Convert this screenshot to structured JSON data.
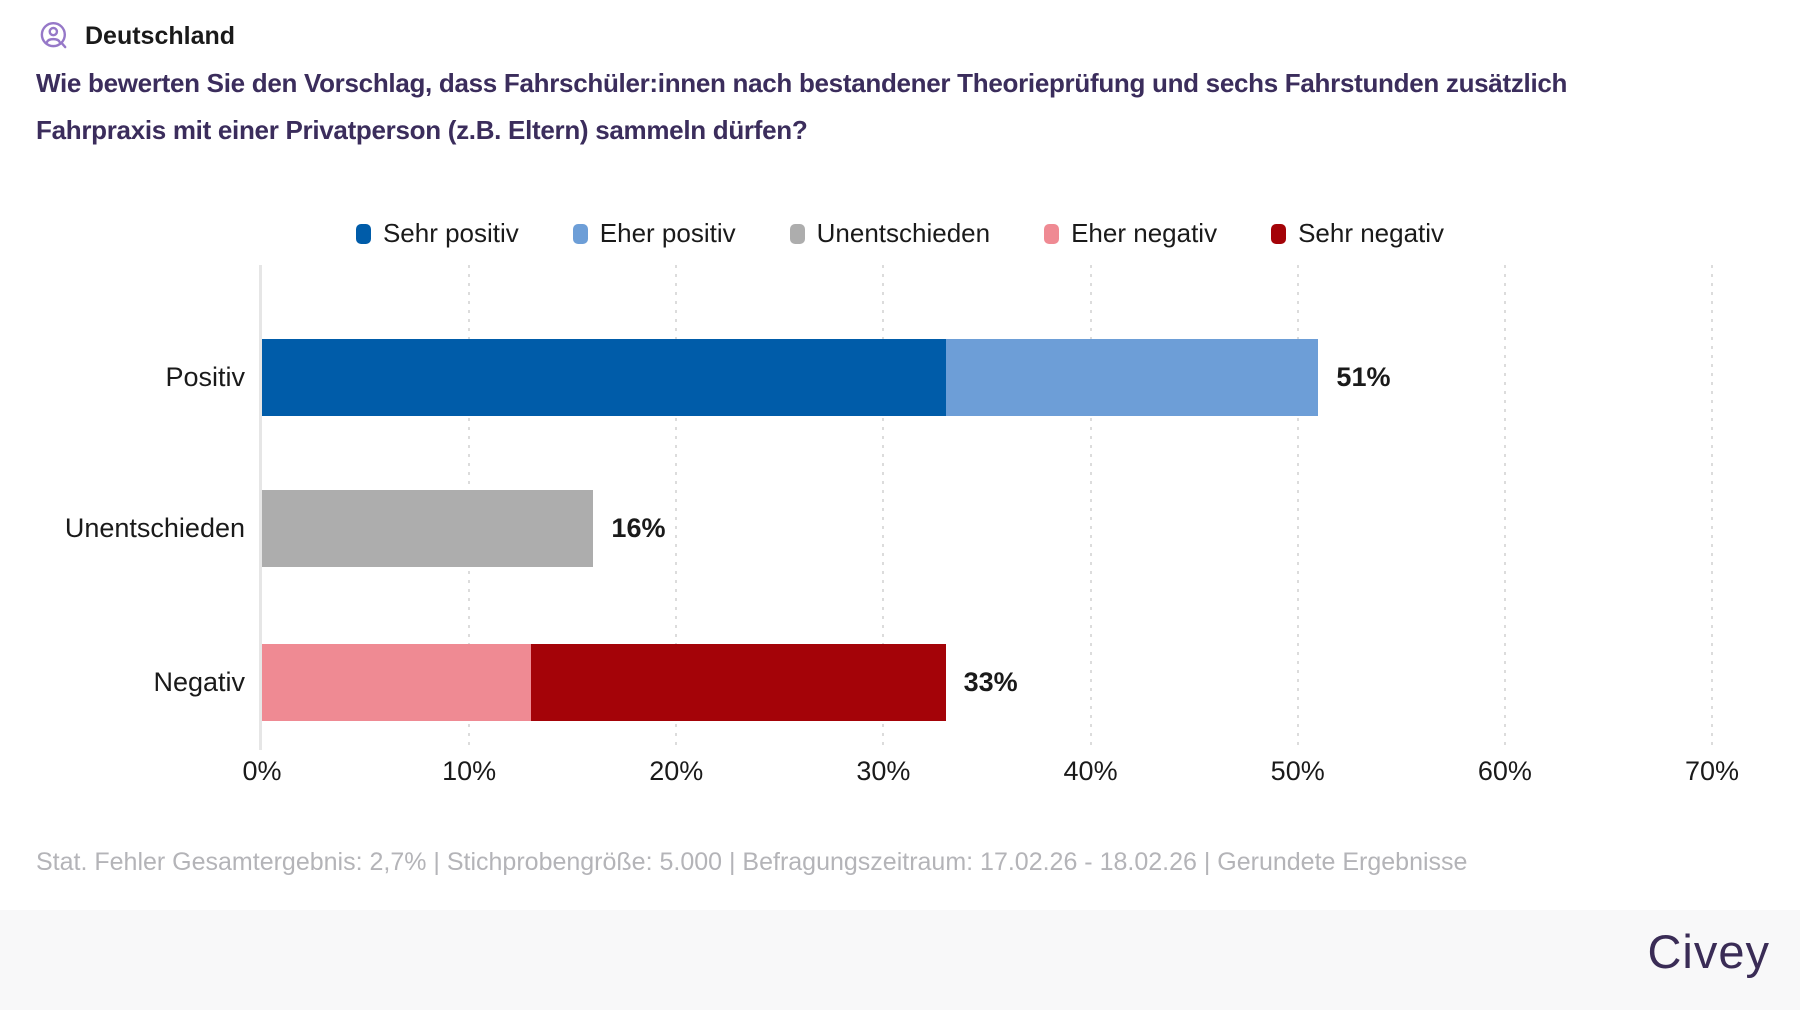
{
  "header": {
    "region_label": "Deutschland",
    "question": "Wie bewerten Sie den Vorschlag, dass Fahrschüler:innen nach bestandener Theorieprüfung und sechs Fahrstunden zusätzlich Fahrpraxis mit einer Privatperson (z.B. Eltern) sammeln dürfen?"
  },
  "chart_data": {
    "type": "bar",
    "orientation": "horizontal",
    "stacked": true,
    "categories": [
      "Positiv",
      "Unentschieden",
      "Negativ"
    ],
    "series": [
      {
        "name": "Sehr positiv",
        "color": "#005CA9",
        "values": [
          33,
          0,
          0
        ]
      },
      {
        "name": "Eher positiv",
        "color": "#6D9ED7",
        "values": [
          18,
          0,
          0
        ]
      },
      {
        "name": "Unentschieden",
        "color": "#ADADAD",
        "values": [
          0,
          16,
          0
        ]
      },
      {
        "name": "Eher negativ",
        "color": "#EF8A93",
        "values": [
          0,
          0,
          13
        ]
      },
      {
        "name": "Sehr negativ",
        "color": "#A40308",
        "values": [
          0,
          0,
          20
        ]
      }
    ],
    "totals": [
      "51%",
      "16%",
      "33%"
    ],
    "x_ticks": [
      "0%",
      "10%",
      "20%",
      "30%",
      "40%",
      "50%",
      "60%",
      "70%"
    ],
    "xlim": [
      0,
      70
    ],
    "grid": "dotted-vertical",
    "legend_position": "top",
    "title": "",
    "xlabel": "",
    "ylabel": ""
  },
  "footer": {
    "note": "Stat. Fehler Gesamtergebnis: 2,7% | Stichprobengröße: 5.000 | Befragungszeitraum: 17.02.26 - 18.02.26 | Gerundete Ergebnisse",
    "brand": "Civey"
  },
  "colors": {
    "question_text": "#3b2d5c",
    "icon_purple": "#9678c8",
    "axis_line": "#e6e6e6",
    "gridline": "#dcdcdc",
    "footnote_text": "#b4b4b8",
    "bottom_band": "#f8f8f9",
    "brand_text": "#3a2c56"
  }
}
